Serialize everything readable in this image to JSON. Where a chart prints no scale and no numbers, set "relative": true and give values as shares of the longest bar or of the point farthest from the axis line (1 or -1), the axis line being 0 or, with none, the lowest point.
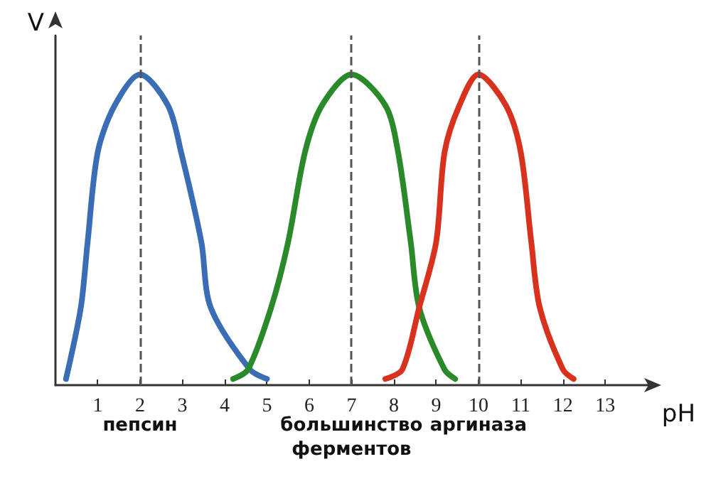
{
  "chart_data": {
    "type": "line",
    "relative": true,
    "xlabel": "pH",
    "ylabel": "V",
    "xlim": [
      0,
      14
    ],
    "xticks": [
      1,
      2,
      3,
      4,
      5,
      6,
      7,
      8,
      9,
      10,
      11,
      12,
      13
    ],
    "tick_labels": "x",
    "grid": false,
    "marker": "none",
    "line_style": "solid",
    "series": [
      {
        "color": "#3a6db5",
        "x": [
          0.25,
          0.6,
          0.76,
          1.0,
          1.4,
          2,
          2.66,
          2.97,
          3.45,
          3.67,
          4.6,
          5.0
        ],
        "values": [
          0.02,
          0.25,
          0.46,
          0.75,
          0.9,
          1,
          0.9,
          0.75,
          0.46,
          0.25,
          0.05,
          0.02
        ]
      },
      {
        "color": "#2a8a2a",
        "x": [
          4.2,
          4.55,
          5.1,
          5.5,
          5.9,
          6.3,
          7,
          7.8,
          8.1,
          8.4,
          8.6,
          9.2,
          9.45
        ],
        "values": [
          0.02,
          0.05,
          0.25,
          0.46,
          0.75,
          0.9,
          1,
          0.9,
          0.75,
          0.46,
          0.25,
          0.05,
          0.02
        ]
      },
      {
        "color": "#d8321e",
        "x": [
          7.8,
          8.2,
          8.6,
          9.0,
          9.2,
          9.55,
          10,
          10.65,
          11.0,
          11.25,
          11.45,
          12.0,
          12.25
        ],
        "values": [
          0.02,
          0.05,
          0.25,
          0.46,
          0.75,
          0.9,
          1,
          0.9,
          0.75,
          0.46,
          0.25,
          0.05,
          0.02
        ]
      }
    ],
    "annotations": [
      {
        "text": "пепсин",
        "x": 2,
        "y": 0
      },
      {
        "text": "большинство ферментов",
        "x": 7,
        "y": 0
      },
      {
        "text": "аргиназа",
        "x": 10,
        "y": 0
      }
    ],
    "ref_lines": [
      {
        "axis": "x",
        "value": 2,
        "color": "#555555",
        "line_style": "dashed"
      },
      {
        "axis": "x",
        "value": 7,
        "color": "#555555",
        "line_style": "dashed"
      },
      {
        "axis": "x",
        "value": 10,
        "color": "#555555",
        "line_style": "dashed"
      }
    ]
  }
}
